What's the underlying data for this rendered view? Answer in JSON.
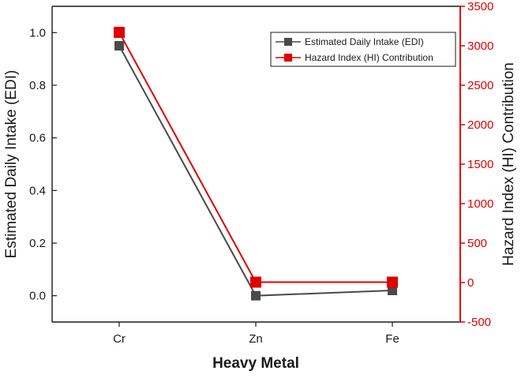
{
  "chart_data": {
    "type": "line",
    "xlabel": "Heavy Metal",
    "ylabel": "Estimated Daily Intake (EDI)",
    "y2label": "Hazard Index (HI) Contribution",
    "categories": [
      "Cr",
      "Zn",
      "Fe"
    ],
    "ylim": [
      -0.1,
      1.1
    ],
    "y2lim": [
      -500,
      3500
    ],
    "yticks": [
      0.0,
      0.2,
      0.4,
      0.6,
      0.8,
      1.0
    ],
    "ytick_labels": [
      "0.0",
      "0.2",
      "0.4",
      "0.6",
      "0.8",
      "1.0"
    ],
    "y2ticks": [
      -500,
      0,
      500,
      1000,
      1500,
      2000,
      2500,
      3000,
      3500
    ],
    "y2tick_labels": [
      "-500",
      "0",
      "500",
      "1000",
      "1500",
      "2000",
      "2500",
      "3000",
      "3500"
    ],
    "series": [
      {
        "name": "Estimated Daily Intake (EDI)",
        "axis": "left",
        "color": "#4a4a4a",
        "values": [
          0.95,
          0.0,
          0.02
        ]
      },
      {
        "name": "Hazard Index (HI) Contribution",
        "axis": "right",
        "color": "#e00000",
        "values": [
          3170,
          5,
          5
        ]
      }
    ],
    "legend_position": "top-right"
  }
}
